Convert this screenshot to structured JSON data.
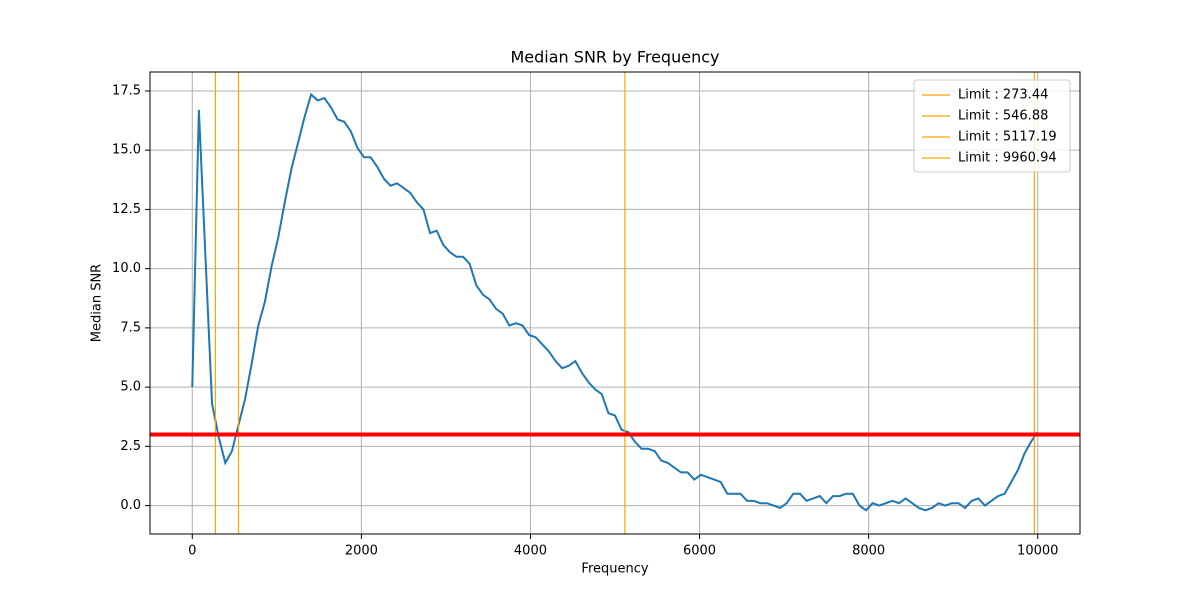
{
  "chart_data": {
    "type": "line",
    "title": "Median SNR by Frequency",
    "x_label": "Frequency",
    "y_label": "Median SNR",
    "x": [
      0,
      78,
      156,
      234,
      312,
      391,
      469,
      547,
      625,
      703,
      781,
      859,
      938,
      1016,
      1094,
      1172,
      1250,
      1328,
      1406,
      1484,
      1563,
      1641,
      1719,
      1797,
      1875,
      1953,
      2031,
      2109,
      2188,
      2266,
      2344,
      2422,
      2500,
      2578,
      2656,
      2734,
      2813,
      2891,
      2969,
      3047,
      3125,
      3203,
      3281,
      3359,
      3438,
      3516,
      3594,
      3672,
      3750,
      3828,
      3906,
      3984,
      4063,
      4141,
      4219,
      4297,
      4375,
      4453,
      4531,
      4609,
      4688,
      4766,
      4844,
      4922,
      5000,
      5078,
      5156,
      5234,
      5313,
      5391,
      5469,
      5547,
      5625,
      5703,
      5781,
      5859,
      5938,
      6016,
      6094,
      6172,
      6250,
      6328,
      6406,
      6484,
      6563,
      6641,
      6719,
      6797,
      6875,
      6953,
      7031,
      7109,
      7188,
      7266,
      7344,
      7422,
      7500,
      7578,
      7656,
      7734,
      7813,
      7891,
      7969,
      8047,
      8125,
      8203,
      8281,
      8359,
      8438,
      8516,
      8594,
      8672,
      8750,
      8828,
      8906,
      8984,
      9063,
      9141,
      9219,
      9297,
      9375,
      9453,
      9531,
      9609,
      9688,
      9766,
      9844,
      9922,
      10000
    ],
    "series": [
      {
        "name": "Median SNR",
        "color": "#1f77b4",
        "values": [
          5.0,
          16.7,
          10.5,
          4.3,
          2.9,
          1.8,
          2.3,
          3.4,
          4.5,
          6.0,
          7.6,
          8.6,
          10.1,
          11.3,
          12.8,
          14.2,
          15.3,
          16.4,
          17.35,
          17.1,
          17.2,
          16.8,
          16.3,
          16.2,
          15.8,
          15.1,
          14.7,
          14.7,
          14.3,
          13.8,
          13.5,
          13.6,
          13.4,
          13.2,
          12.8,
          12.5,
          11.5,
          11.6,
          11.0,
          10.7,
          10.5,
          10.5,
          10.2,
          9.3,
          8.9,
          8.7,
          8.3,
          8.1,
          7.6,
          7.7,
          7.6,
          7.2,
          7.1,
          6.8,
          6.5,
          6.1,
          5.8,
          5.9,
          6.1,
          5.6,
          5.2,
          4.9,
          4.7,
          3.9,
          3.8,
          3.2,
          3.1,
          2.7,
          2.4,
          2.4,
          2.3,
          1.9,
          1.8,
          1.6,
          1.4,
          1.4,
          1.1,
          1.3,
          1.2,
          1.1,
          1.0,
          0.5,
          0.5,
          0.5,
          0.2,
          0.2,
          0.1,
          0.1,
          0.0,
          -0.1,
          0.1,
          0.5,
          0.5,
          0.2,
          0.3,
          0.4,
          0.1,
          0.4,
          0.4,
          0.5,
          0.5,
          0.0,
          -0.2,
          0.1,
          0.0,
          0.1,
          0.2,
          0.1,
          0.3,
          0.1,
          -0.1,
          -0.2,
          -0.1,
          0.1,
          0.0,
          0.1,
          0.1,
          -0.1,
          0.2,
          0.3,
          0.0,
          0.2,
          0.4,
          0.5,
          1.0,
          1.5,
          2.2,
          2.7,
          3.1
        ]
      }
    ],
    "limits": [
      {
        "name": "Limit : 273.44",
        "value": 273.44,
        "color": "orange"
      },
      {
        "name": "Limit : 546.88",
        "value": 546.88,
        "color": "orange"
      },
      {
        "name": "Limit : 5117.19",
        "value": 5117.19,
        "color": "orange"
      },
      {
        "name": "Limit : 9960.94",
        "value": 9960.94,
        "color": "orange"
      }
    ],
    "threshold": {
      "value": 3,
      "color": "red"
    },
    "xlim": [
      -500,
      10500
    ],
    "ylim": [
      -1.2,
      18.3
    ],
    "xticks": [
      0,
      2000,
      4000,
      6000,
      8000,
      10000
    ],
    "yticks": [
      {
        "value": 0,
        "label": "0.0"
      },
      {
        "value": 2.5,
        "label": "2.5"
      },
      {
        "value": 5,
        "label": "5.0"
      },
      {
        "value": 7.5,
        "label": "7.5"
      },
      {
        "value": 10,
        "label": "10.0"
      },
      {
        "value": 12.5,
        "label": "12.5"
      },
      {
        "value": 15,
        "label": "15.0"
      },
      {
        "value": 17.5,
        "label": "17.5"
      }
    ],
    "grid": true,
    "legend": "upper right"
  }
}
